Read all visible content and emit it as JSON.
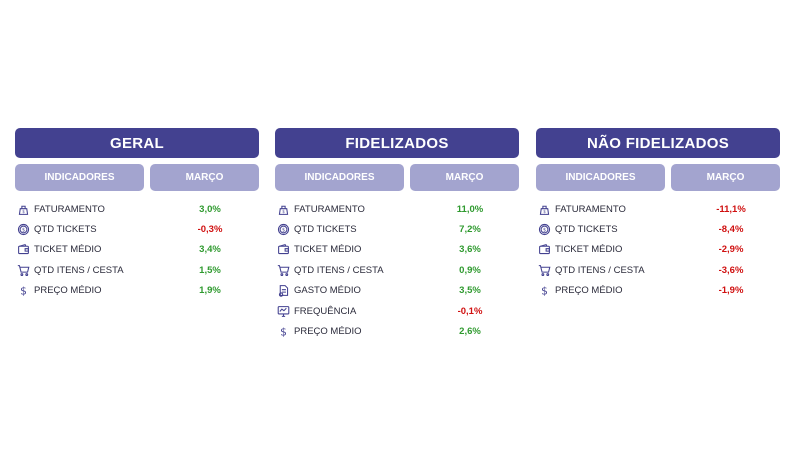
{
  "colors": {
    "title_bg": "#434190",
    "header_bg": "#a3a4cf",
    "positive": "#2f9a2f",
    "negative": "#d01010"
  },
  "panels": [
    {
      "title": "GERAL",
      "col_indicator": "INDICADORES",
      "col_month": "MARÇO",
      "rows": [
        {
          "icon": "revenue-icon",
          "label": "FATURAMENTO",
          "value": "3,0%",
          "sign": "pos"
        },
        {
          "icon": "coin-icon",
          "label": "QTD TICKETS",
          "value": "-0,3%",
          "sign": "neg"
        },
        {
          "icon": "wallet-icon",
          "label": "TICKET MÉDIO",
          "value": "3,4%",
          "sign": "pos"
        },
        {
          "icon": "cart-icon",
          "label": "QTD ITENS / CESTA",
          "value": "1,5%",
          "sign": "pos"
        },
        {
          "icon": "dollar-icon",
          "label": "PREÇO MÉDIO",
          "value": "1,9%",
          "sign": "pos"
        }
      ]
    },
    {
      "title": "FIDELIZADOS",
      "col_indicator": "INDICADORES",
      "col_month": "MARÇO",
      "rows": [
        {
          "icon": "revenue-icon",
          "label": "FATURAMENTO",
          "value": "11,0%",
          "sign": "pos"
        },
        {
          "icon": "coin-icon",
          "label": "QTD TICKETS",
          "value": "7,2%",
          "sign": "pos"
        },
        {
          "icon": "wallet-icon",
          "label": "TICKET MÉDIO",
          "value": "3,6%",
          "sign": "pos"
        },
        {
          "icon": "cart-icon",
          "label": "QTD ITENS / CESTA",
          "value": "0,9%",
          "sign": "pos"
        },
        {
          "icon": "spend-icon",
          "label": "GASTO MÉDIO",
          "value": "3,5%",
          "sign": "pos"
        },
        {
          "icon": "frequency-icon",
          "label": "FREQUÊNCIA",
          "value": "-0,1%",
          "sign": "neg"
        },
        {
          "icon": "dollar-icon",
          "label": "PREÇO MÉDIO",
          "value": "2,6%",
          "sign": "pos"
        }
      ]
    },
    {
      "title": "NÃO FIDELIZADOS",
      "col_indicator": "INDICADORES",
      "col_month": "MARÇO",
      "rows": [
        {
          "icon": "revenue-icon",
          "label": "FATURAMENTO",
          "value": "-11,1%",
          "sign": "neg"
        },
        {
          "icon": "coin-icon",
          "label": "QTD TICKETS",
          "value": "-8,4%",
          "sign": "neg"
        },
        {
          "icon": "wallet-icon",
          "label": "TICKET MÉDIO",
          "value": "-2,9%",
          "sign": "neg"
        },
        {
          "icon": "cart-icon",
          "label": "QTD ITENS / CESTA",
          "value": "-3,6%",
          "sign": "neg"
        },
        {
          "icon": "dollar-icon",
          "label": "PREÇO MÉDIO",
          "value": "-1,9%",
          "sign": "neg"
        }
      ]
    }
  ]
}
